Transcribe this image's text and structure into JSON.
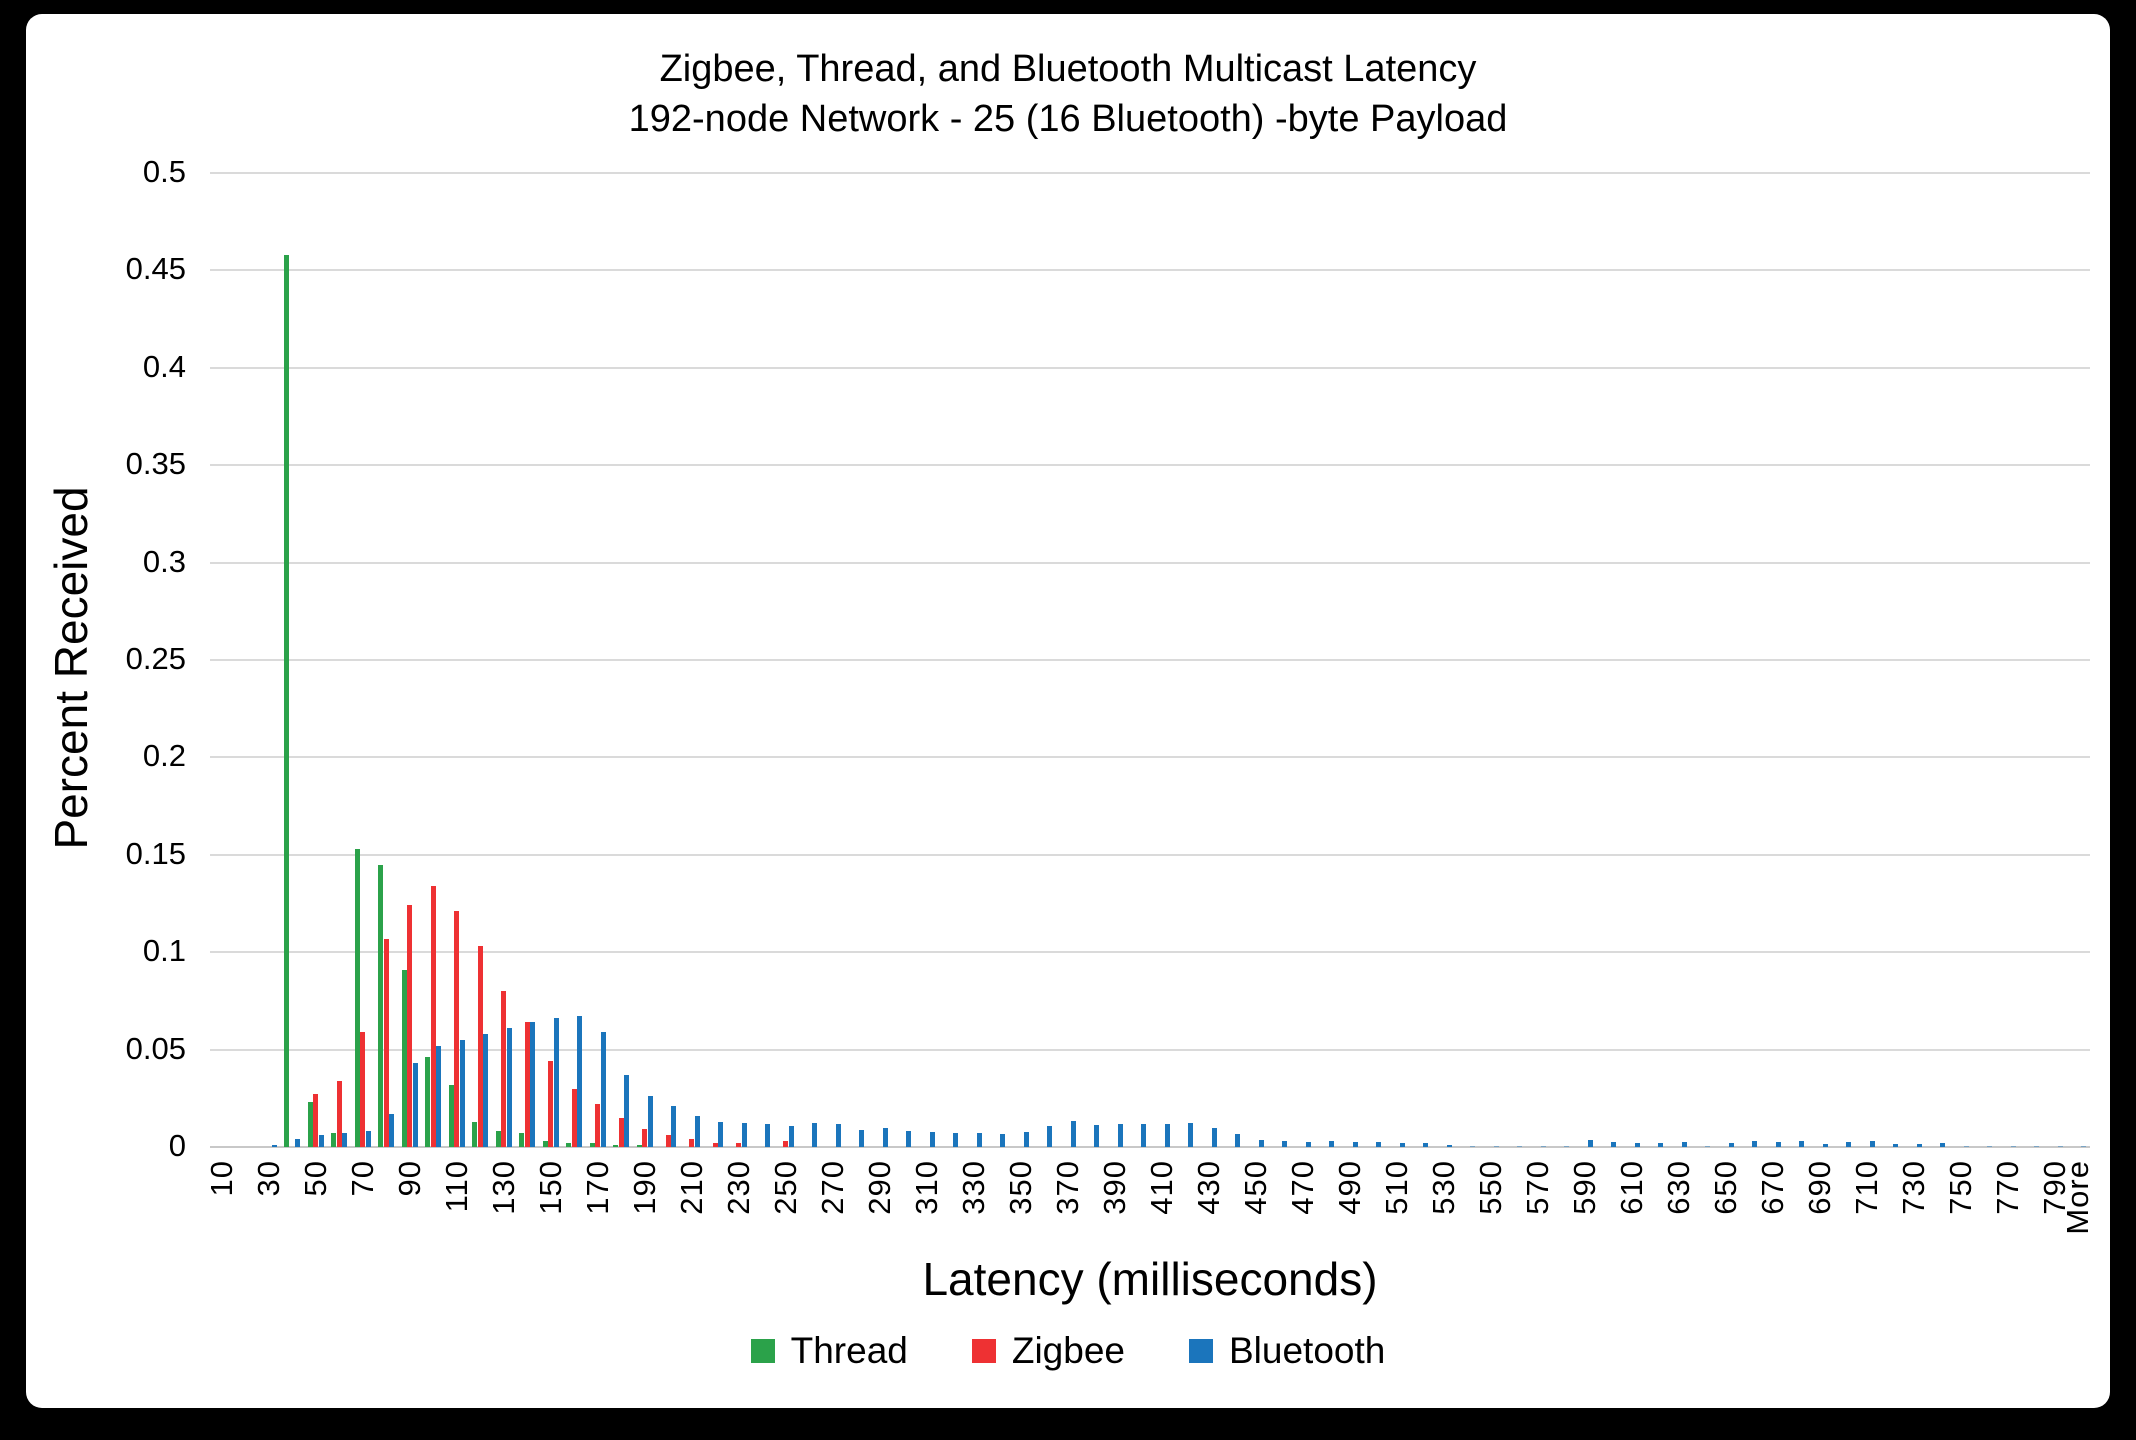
{
  "frame": {
    "background": "#000000",
    "card_background": "#FFFFFF"
  },
  "colors": {
    "thread_green": "#2BA24A",
    "zigbee_red": "#EE3133",
    "bluetooth_blue": "#1B75BC",
    "gridline": "#DADADA",
    "axis_line": "#C8C8C8",
    "text": "#000000"
  },
  "chart_data": {
    "type": "bar",
    "title_line1": "Zigbee, Thread, and Bluetooth Multicast Latency",
    "title_line2": "192-node Network - 25 (16 Bluetooth) -byte Payload",
    "xlabel": "Latency (milliseconds)",
    "ylabel": "Percent Received",
    "ylim": [
      0,
      0.5
    ],
    "y_ticks": [
      "0",
      "0.05",
      "0.1",
      "0.15",
      "0.2",
      "0.25",
      "0.3",
      "0.35",
      "0.4",
      "0.45",
      "0.5"
    ],
    "grid": "horizontal-only",
    "legend_position": "bottom-center",
    "x_tick_labels_shown": [
      "10",
      "30",
      "50",
      "70",
      "90",
      "110",
      "130",
      "150",
      "170",
      "190",
      "210",
      "230",
      "250",
      "270",
      "290",
      "310",
      "330",
      "350",
      "370",
      "390",
      "410",
      "430",
      "450",
      "470",
      "490",
      "510",
      "530",
      "550",
      "570",
      "590",
      "610",
      "630",
      "650",
      "670",
      "690",
      "710",
      "730",
      "750",
      "770",
      "790",
      "More"
    ],
    "categories": [
      "10",
      "20",
      "30",
      "40",
      "50",
      "60",
      "70",
      "80",
      "90",
      "100",
      "110",
      "120",
      "130",
      "140",
      "150",
      "160",
      "170",
      "180",
      "190",
      "200",
      "210",
      "220",
      "230",
      "240",
      "250",
      "260",
      "270",
      "280",
      "290",
      "300",
      "310",
      "320",
      "330",
      "340",
      "350",
      "360",
      "370",
      "380",
      "390",
      "400",
      "410",
      "420",
      "430",
      "440",
      "450",
      "460",
      "470",
      "480",
      "490",
      "500",
      "510",
      "520",
      "530",
      "540",
      "550",
      "560",
      "570",
      "580",
      "590",
      "600",
      "610",
      "620",
      "630",
      "640",
      "650",
      "660",
      "670",
      "680",
      "690",
      "700",
      "710",
      "720",
      "730",
      "740",
      "750",
      "760",
      "770",
      "780",
      "790",
      "More"
    ],
    "series": [
      {
        "name": "Thread",
        "color": "#2BA24A",
        "values": [
          0,
          0,
          0,
          0.458,
          0.023,
          0.007,
          0.153,
          0.145,
          0.091,
          0.046,
          0.032,
          0.013,
          0.008,
          0.007,
          0.003,
          0.002,
          0.002,
          0.001,
          0.001,
          0,
          0,
          0,
          0,
          0,
          0,
          0,
          0,
          0,
          0,
          0,
          0,
          0,
          0,
          0,
          0,
          0,
          0,
          0,
          0,
          0,
          0,
          0,
          0,
          0,
          0,
          0,
          0,
          0,
          0,
          0,
          0,
          0,
          0,
          0,
          0,
          0,
          0,
          0,
          0,
          0,
          0,
          0,
          0,
          0,
          0,
          0,
          0,
          0,
          0,
          0,
          0,
          0,
          0,
          0,
          0,
          0,
          0,
          0,
          0,
          0
        ]
      },
      {
        "name": "Zigbee",
        "color": "#EE3133",
        "values": [
          0,
          0,
          0,
          0,
          0.027,
          0.034,
          0.059,
          0.107,
          0.124,
          0.134,
          0.121,
          0.103,
          0.08,
          0.064,
          0.044,
          0.03,
          0.022,
          0.015,
          0.009,
          0.006,
          0.004,
          0.002,
          0.002,
          0,
          0.003,
          0,
          0,
          0,
          0,
          0,
          0,
          0,
          0,
          0,
          0,
          0,
          0,
          0,
          0,
          0,
          0,
          0,
          0,
          0,
          0,
          0,
          0,
          0,
          0,
          0,
          0,
          0,
          0,
          0,
          0,
          0,
          0,
          0,
          0,
          0,
          0,
          0,
          0,
          0,
          0,
          0,
          0,
          0,
          0,
          0,
          0,
          0,
          0,
          0,
          0,
          0,
          0,
          0,
          0,
          0
        ]
      },
      {
        "name": "Bluetooth",
        "color": "#1B75BC",
        "values": [
          0,
          0,
          0.001,
          0.004,
          0.006,
          0.007,
          0.008,
          0.017,
          0.043,
          0.052,
          0.055,
          0.058,
          0.061,
          0.064,
          0.066,
          0.067,
          0.059,
          0.037,
          0.026,
          0.021,
          0.016,
          0.013,
          0.0125,
          0.012,
          0.011,
          0.0125,
          0.012,
          0.0085,
          0.0095,
          0.008,
          0.0075,
          0.007,
          0.007,
          0.0065,
          0.0075,
          0.011,
          0.0135,
          0.0115,
          0.012,
          0.012,
          0.012,
          0.0125,
          0.0095,
          0.0065,
          0.0035,
          0.003,
          0.0025,
          0.003,
          0.0025,
          0.0025,
          0.002,
          0.002,
          0.001,
          0.0005,
          0.0005,
          0.0005,
          0.0005,
          0.0005,
          0.0035,
          0.0025,
          0.002,
          0.002,
          0.0025,
          0.0005,
          0.002,
          0.003,
          0.0025,
          0.003,
          0.0013,
          0.0024,
          0.003,
          0.0016,
          0.0016,
          0.0018,
          0.0005,
          0.0005,
          0.0005,
          0.0005,
          0.0005,
          0.0005
        ]
      }
    ]
  }
}
